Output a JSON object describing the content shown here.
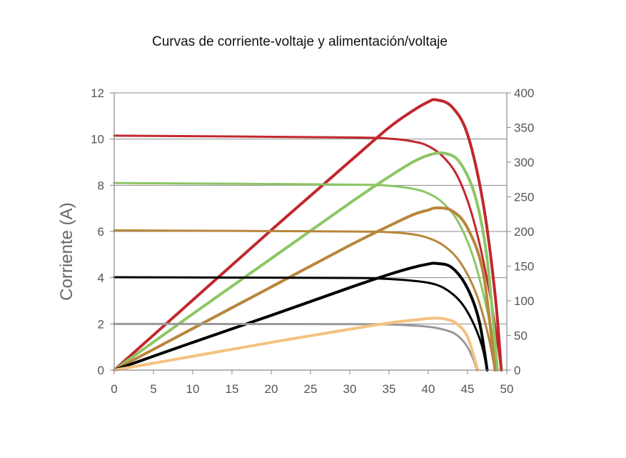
{
  "chart_data": {
    "type": "line",
    "title": "Curvas de corriente-voltaje y alimentación/voltaje",
    "xlabel": "",
    "ylabel": "Corriente (A)",
    "y2label": "",
    "xlim": [
      0,
      50
    ],
    "ylim": [
      0,
      12
    ],
    "y2lim": [
      0,
      400
    ],
    "x_ticks": [
      "0",
      "5",
      "10",
      "15",
      "20",
      "25",
      "30",
      "35",
      "40",
      "45",
      "50"
    ],
    "y_ticks": [
      "0",
      "2",
      "4",
      "6",
      "8",
      "10",
      "12"
    ],
    "y2_ticks": [
      "0",
      "50",
      "100",
      "150",
      "200",
      "250",
      "300",
      "350",
      "400"
    ],
    "grid": "horizontal",
    "legend": "none",
    "series": [
      {
        "kind": "current",
        "color": "#c1272d",
        "Isc": 10.15,
        "Ir": 10.0,
        "Vk": 40,
        "Voc": 49.3,
        "points": [
          [
            0,
            10.15
          ],
          [
            30,
            10.07
          ],
          [
            35,
            10.02
          ],
          [
            38,
            9.9
          ],
          [
            40,
            9.7
          ],
          [
            42,
            9.2
          ],
          [
            44,
            8.2
          ],
          [
            46,
            6.2
          ],
          [
            48,
            3.0
          ],
          [
            49.3,
            0
          ]
        ]
      },
      {
        "kind": "power",
        "color": "#c1272d",
        "Vmp": 41,
        "Pmp": 390,
        "Voc": 49.3,
        "points": [
          [
            0,
            0
          ],
          [
            10,
            101
          ],
          [
            20,
            202
          ],
          [
            30,
            301
          ],
          [
            35,
            350
          ],
          [
            38,
            374
          ],
          [
            40,
            387
          ],
          [
            41,
            390
          ],
          [
            43,
            380
          ],
          [
            45,
            340
          ],
          [
            47,
            240
          ],
          [
            48.5,
            110
          ],
          [
            49.3,
            0
          ]
        ]
      },
      {
        "kind": "current",
        "color": "#8cc665",
        "Isc": 8.1,
        "Ir": 8.0,
        "Vk": 40,
        "Voc": 48.8,
        "points": [
          [
            0,
            8.1
          ],
          [
            30,
            8.03
          ],
          [
            35,
            7.98
          ],
          [
            38,
            7.85
          ],
          [
            40,
            7.65
          ],
          [
            42,
            7.2
          ],
          [
            44,
            6.3
          ],
          [
            46,
            4.6
          ],
          [
            48,
            1.8
          ],
          [
            48.8,
            0
          ]
        ]
      },
      {
        "kind": "power",
        "color": "#8cc665",
        "Vmp": 42,
        "Pmp": 313,
        "Voc": 48.8,
        "points": [
          [
            0,
            0
          ],
          [
            10,
            81
          ],
          [
            20,
            161
          ],
          [
            30,
            241
          ],
          [
            35,
            279
          ],
          [
            38,
            300
          ],
          [
            40,
            310
          ],
          [
            42,
            313
          ],
          [
            44,
            300
          ],
          [
            46,
            250
          ],
          [
            47.5,
            160
          ],
          [
            48.8,
            0
          ]
        ]
      },
      {
        "kind": "current",
        "color": "#b8863b",
        "Isc": 6.05,
        "Ir": 6.0,
        "Vk": 40,
        "Voc": 48.5,
        "points": [
          [
            0,
            6.05
          ],
          [
            30,
            6.0
          ],
          [
            35,
            5.97
          ],
          [
            38,
            5.88
          ],
          [
            40,
            5.72
          ],
          [
            42,
            5.38
          ],
          [
            44,
            4.7
          ],
          [
            46,
            3.4
          ],
          [
            47.5,
            1.7
          ],
          [
            48.5,
            0
          ]
        ]
      },
      {
        "kind": "power",
        "color": "#b8863b",
        "Vmp": 41,
        "Pmp": 234,
        "Voc": 48.5,
        "points": [
          [
            0,
            0
          ],
          [
            10,
            60
          ],
          [
            20,
            120
          ],
          [
            30,
            180
          ],
          [
            35,
            208
          ],
          [
            38,
            224
          ],
          [
            40,
            231
          ],
          [
            41,
            234
          ],
          [
            43,
            230
          ],
          [
            45,
            205
          ],
          [
            47,
            140
          ],
          [
            48.5,
            0
          ]
        ]
      },
      {
        "kind": "current",
        "color": "#000000",
        "Isc": 4.02,
        "Ir": 3.98,
        "Vk": 38,
        "Voc": 47.5,
        "points": [
          [
            0,
            4.02
          ],
          [
            30,
            3.99
          ],
          [
            34,
            3.96
          ],
          [
            37,
            3.9
          ],
          [
            40,
            3.78
          ],
          [
            42,
            3.55
          ],
          [
            44,
            3.0
          ],
          [
            45.5,
            2.2
          ],
          [
            46.8,
            1.1
          ],
          [
            47.5,
            0
          ]
        ]
      },
      {
        "kind": "power",
        "color": "#000000",
        "Vmp": 41,
        "Pmp": 154,
        "Voc": 47.5,
        "points": [
          [
            0,
            0
          ],
          [
            10,
            40
          ],
          [
            20,
            79
          ],
          [
            30,
            119
          ],
          [
            35,
            138
          ],
          [
            38,
            148
          ],
          [
            40,
            153
          ],
          [
            41,
            154
          ],
          [
            43,
            148
          ],
          [
            45,
            118
          ],
          [
            46.5,
            70
          ],
          [
            47.5,
            0
          ]
        ]
      },
      {
        "kind": "current",
        "color": "#999999",
        "Isc": 2.0,
        "Ir": 1.98,
        "Vk": 38,
        "Voc": 46.2,
        "points": [
          [
            0,
            2.0
          ],
          [
            30,
            1.99
          ],
          [
            34,
            1.98
          ],
          [
            37,
            1.95
          ],
          [
            40,
            1.88
          ],
          [
            42,
            1.75
          ],
          [
            43.5,
            1.55
          ],
          [
            44.8,
            1.1
          ],
          [
            45.7,
            0.5
          ],
          [
            46.2,
            0
          ]
        ]
      },
      {
        "kind": "power",
        "color": "#f5c280",
        "Vmp": 41,
        "Pmp": 75,
        "Voc": 46.3,
        "points": [
          [
            0,
            0
          ],
          [
            10,
            20
          ],
          [
            20,
            40
          ],
          [
            30,
            59
          ],
          [
            35,
            68
          ],
          [
            38,
            72
          ],
          [
            40,
            74.5
          ],
          [
            41,
            75
          ],
          [
            42,
            74
          ],
          [
            43.5,
            68
          ],
          [
            45,
            48
          ],
          [
            46.3,
            0
          ]
        ]
      }
    ]
  }
}
